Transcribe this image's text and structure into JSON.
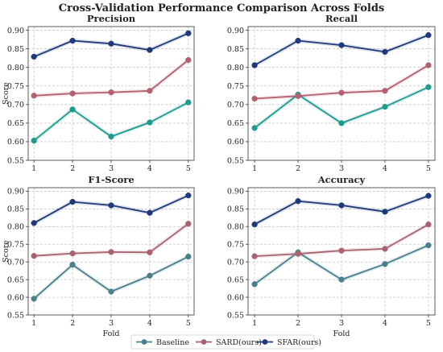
{
  "figure": {
    "title": "Cross-Validation Performance Comparison Across Folds"
  },
  "legend": {
    "items": [
      {
        "label": "Baseline",
        "color": "#4a7f8c"
      },
      {
        "label": "SARD(ours)",
        "color": "#a86270"
      },
      {
        "label": "SFAR(ours)",
        "color": "#1f3a7a"
      }
    ],
    "position": "bottom-center"
  },
  "chart_data": [
    {
      "type": "line",
      "title": "Precision",
      "xlabel": "",
      "ylabel": "Score",
      "x": [
        1,
        2,
        3,
        4,
        5
      ],
      "xticks": [
        "1",
        "2",
        "3",
        "4",
        "5"
      ],
      "ylim": [
        0.55,
        0.91
      ],
      "yticks": [
        "0.55",
        "0.60",
        "0.65",
        "0.70",
        "0.75",
        "0.80",
        "0.85",
        "0.90"
      ],
      "grid": true,
      "series": [
        {
          "name": "Baseline",
          "color": "#1e9a8e",
          "values": [
            0.603,
            0.687,
            0.614,
            0.652,
            0.706
          ]
        },
        {
          "name": "SARD(ours)",
          "color": "#b4606e",
          "values": [
            0.724,
            0.73,
            0.733,
            0.737,
            0.82
          ]
        },
        {
          "name": "SFAR(ours)",
          "color": "#1f3a7a",
          "values": [
            0.829,
            0.872,
            0.864,
            0.847,
            0.892
          ]
        }
      ]
    },
    {
      "type": "line",
      "title": "Recall",
      "xlabel": "",
      "ylabel": "",
      "x": [
        1,
        2,
        3,
        4,
        5
      ],
      "xticks": [
        "1",
        "2",
        "3",
        "4",
        "5"
      ],
      "ylim": [
        0.55,
        0.91
      ],
      "yticks": [
        "0.55",
        "0.60",
        "0.65",
        "0.70",
        "0.75",
        "0.80",
        "0.85",
        "0.90"
      ],
      "grid": true,
      "series": [
        {
          "name": "Baseline",
          "color": "#1e9a8e",
          "values": [
            0.637,
            0.727,
            0.65,
            0.694,
            0.747
          ]
        },
        {
          "name": "SARD(ours)",
          "color": "#b4606e",
          "values": [
            0.716,
            0.723,
            0.732,
            0.737,
            0.806
          ]
        },
        {
          "name": "SFAR(ours)",
          "color": "#1f3a7a",
          "values": [
            0.806,
            0.872,
            0.86,
            0.842,
            0.887
          ]
        }
      ]
    },
    {
      "type": "line",
      "title": "F1-Score",
      "xlabel": "Fold",
      "ylabel": "Score",
      "x": [
        1,
        2,
        3,
        4,
        5
      ],
      "xticks": [
        "1",
        "2",
        "3",
        "4",
        "5"
      ],
      "ylim": [
        0.55,
        0.91
      ],
      "yticks": [
        "0.55",
        "0.60",
        "0.65",
        "0.70",
        "0.75",
        "0.80",
        "0.85",
        "0.90"
      ],
      "grid": true,
      "series": [
        {
          "name": "Baseline",
          "color": "#4a7f8c",
          "values": [
            0.596,
            0.692,
            0.616,
            0.661,
            0.715
          ]
        },
        {
          "name": "SARD(ours)",
          "color": "#a86270",
          "values": [
            0.717,
            0.724,
            0.728,
            0.727,
            0.808
          ]
        },
        {
          "name": "SFAR(ours)",
          "color": "#1f3a7a",
          "values": [
            0.81,
            0.87,
            0.86,
            0.839,
            0.888
          ]
        }
      ]
    },
    {
      "type": "line",
      "title": "Accuracy",
      "xlabel": "Fold",
      "ylabel": "",
      "x": [
        1,
        2,
        3,
        4,
        5
      ],
      "xticks": [
        "1",
        "2",
        "3",
        "4",
        "5"
      ],
      "ylim": [
        0.55,
        0.91
      ],
      "yticks": [
        "0.55",
        "0.60",
        "0.65",
        "0.70",
        "0.75",
        "0.80",
        "0.85",
        "0.90"
      ],
      "grid": true,
      "series": [
        {
          "name": "Baseline",
          "color": "#4a7f8c",
          "values": [
            0.637,
            0.727,
            0.65,
            0.694,
            0.747
          ]
        },
        {
          "name": "SARD(ours)",
          "color": "#a86270",
          "values": [
            0.716,
            0.723,
            0.732,
            0.737,
            0.806
          ]
        },
        {
          "name": "SFAR(ours)",
          "color": "#1f3a7a",
          "values": [
            0.806,
            0.872,
            0.86,
            0.842,
            0.887
          ]
        }
      ]
    }
  ]
}
